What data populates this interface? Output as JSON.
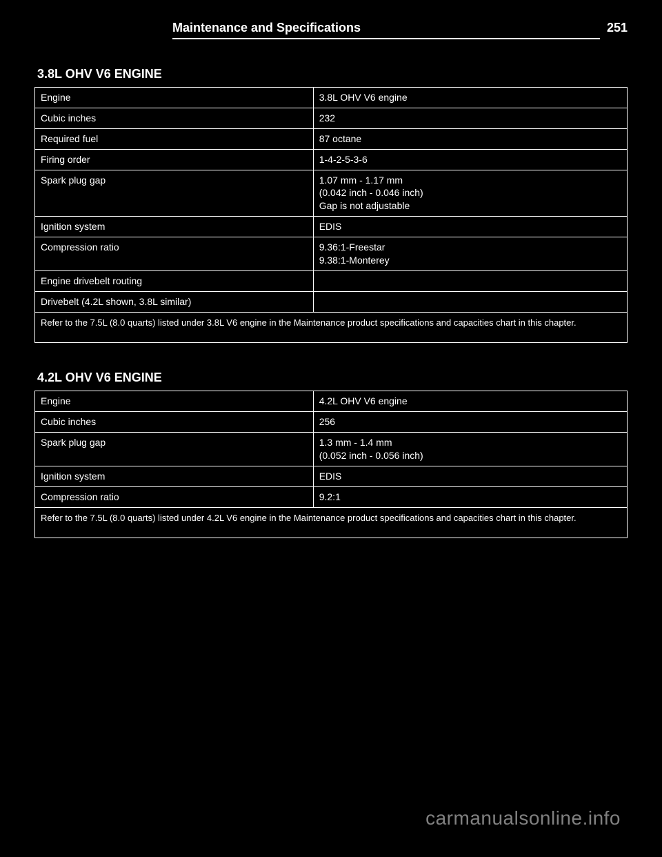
{
  "header": {
    "title": "Maintenance and Specifications",
    "page_number": "251"
  },
  "engine1": {
    "title": "3.8L OHV V6 ENGINE",
    "rows": [
      {
        "label": "Engine",
        "value": "3.8L OHV V6 engine"
      },
      {
        "label": "Cubic inches",
        "value": "232"
      },
      {
        "label": "Required fuel",
        "value": "87 octane"
      },
      {
        "label": "Firing order",
        "value": "1-4-2-5-3-6"
      },
      {
        "label": "Spark plug gap",
        "value": "1.07 mm - 1.17 mm\n(0.042 inch - 0.046 inch)\nGap is not adjustable"
      },
      {
        "label": "Ignition system",
        "value": "EDIS"
      },
      {
        "label": "Compression ratio",
        "value": "9.36:1-Freestar\n9.38:1-Monterey"
      },
      {
        "label": "Engine drivebelt routing",
        "value": ""
      }
    ],
    "drivebelt_label": "Drivebelt (4.2L shown, 3.8L similar)",
    "footnote": "Refer to the 7.5L (8.0 quarts) listed under 3.8L V6 engine in the Maintenance product specifications and capacities chart in this chapter."
  },
  "engine2": {
    "title": "4.2L OHV V6 ENGINE",
    "rows": [
      {
        "label": "Engine",
        "value": "4.2L OHV V6 engine"
      },
      {
        "label": "Cubic inches",
        "value": "256"
      },
      {
        "label": "Spark plug gap",
        "value": "1.3 mm - 1.4 mm\n(0.052 inch - 0.056 inch)"
      },
      {
        "label": "Ignition system",
        "value": "EDIS"
      },
      {
        "label": "Compression ratio",
        "value": "9.2:1"
      }
    ],
    "footnote": "Refer to the 7.5L (8.0 quarts) listed under 4.2L V6 engine in the Maintenance product specifications and capacities chart in this chapter."
  },
  "watermark": "carmanualsonline.info",
  "colors": {
    "background": "#000000",
    "text": "#ffffff",
    "border": "#ffffff",
    "watermark": "#808080"
  }
}
